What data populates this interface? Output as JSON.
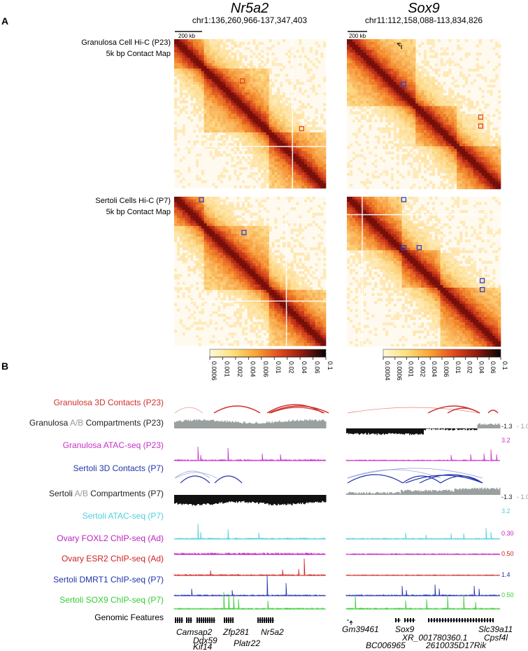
{
  "panel_a": {
    "label": "A",
    "row_labels": [
      {
        "line1": "Granulosa Cell Hi-C (P23)",
        "line2": "5k bp Contact Map"
      },
      {
        "line1": "Sertoli Cells Hi-C (P7)",
        "line2": "5k bp Contact Map"
      }
    ],
    "loci": [
      {
        "gene": "Nr5a2",
        "coords": "chr1:136,260,966-137,347,403",
        "scalebar": "200 kb"
      },
      {
        "gene": "Sox9",
        "coords": "chr11:112,158,088-113,834,826",
        "scalebar": "200 kb"
      }
    ],
    "colorbars": [
      {
        "ticks": [
          "0.0006",
          "0.001",
          "0.002",
          "0.004",
          "0.006",
          "0.01",
          "0.02",
          "0.04",
          "0.06",
          "0.1"
        ]
      },
      {
        "ticks": [
          "0.0004",
          "0.0006",
          "0.001",
          "0.002",
          "0.004",
          "0.006",
          "0.01",
          "0.02",
          "0.04",
          "0.06",
          "0.1"
        ]
      }
    ]
  },
  "panel_b": {
    "label": "B",
    "tracks": [
      {
        "label": "Granulosa 3D Contacts (P23)",
        "color": "#d0312d",
        "kind": "arcs",
        "scale": ""
      },
      {
        "label_prefix": "Granulosa ",
        "label_ab": "A/B",
        "label_suffix": " Compartments (P23)",
        "color": "#222222",
        "kind": "ab",
        "scale_neg": "-1.3",
        "scale_pos": "1.0"
      },
      {
        "label": "Granulosa ATAC-seq (P23)",
        "color": "#c832c8",
        "kind": "signal",
        "scale": "3.2"
      },
      {
        "label": "Sertoli 3D Contacts (P7)",
        "color": "#2233aa",
        "kind": "arcs",
        "scale": ""
      },
      {
        "label_prefix": "Sertoli ",
        "label_ab": "A/B",
        "label_suffix": " Compartments (P7)",
        "color": "#222222",
        "kind": "ab",
        "scale_neg": "-1.3",
        "scale_pos": "1.0"
      },
      {
        "label": "Sertoli ATAC-seq (P7)",
        "color": "#4ccfdc",
        "kind": "signal",
        "scale": "3.2"
      },
      {
        "label": "Ovary FOXL2 ChIP-seq (Ad)",
        "color": "#c020c0",
        "kind": "signal",
        "scale": "0.30"
      },
      {
        "label": "Ovary ESR2 ChIP-seq (Ad)",
        "color": "#d02020",
        "kind": "signal",
        "scale": "0.50"
      },
      {
        "label": "Sertoli DMRT1 ChIP-seq (P7)",
        "color": "#2233aa",
        "kind": "signal",
        "scale": "1.4"
      },
      {
        "label": "Sertoli SOX9 ChIP-seq (P7)",
        "color": "#33cc33",
        "kind": "signal",
        "scale": "0.50"
      }
    ],
    "genomic_features_label": "Genomic Features",
    "genes_left": [
      "Camsap2",
      "Ddx59",
      "Kif14",
      "Zfp281",
      "Platr22",
      "Nr5a2"
    ],
    "genes_right": [
      "Gm39461",
      "Sox9",
      "XR_001780360.1",
      "BC006965",
      "2610035D17Rik",
      "Slc39a11",
      "Cpsf4l"
    ]
  },
  "colors": {
    "heat_low": "#fff3d6",
    "heat_mid": "#f08a24",
    "heat_high": "#b01c0c",
    "compartment_a": "#9aa0a0",
    "compartment_b": "#111111",
    "loop_red": "#d0312d",
    "loop_blue": "#3344cc"
  }
}
